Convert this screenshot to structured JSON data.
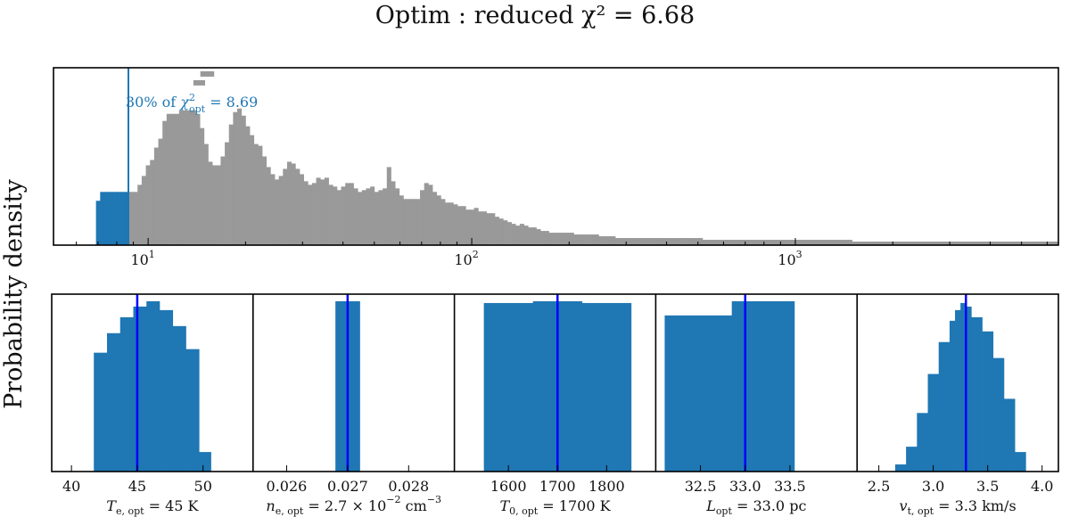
{
  "title": "Optim : reduced χ² =  6.68",
  "ylabel": "Probability density",
  "colors": {
    "accepted": "#1f77b4",
    "rejected": "#999999",
    "optimum_line": "#0000ff",
    "threshold_line": "#1f77b4"
  },
  "chart_data": [
    {
      "type": "histogram",
      "name": "reduced chi-square distribution",
      "xscale": "log",
      "xlim": [
        5.1,
        6500
      ],
      "ylim": [
        0,
        1.0
      ],
      "xticks": [
        {
          "value": 10,
          "base": "10",
          "exp": "1"
        },
        {
          "value": 100,
          "base": "10",
          "exp": "2"
        },
        {
          "value": 1000,
          "base": "10",
          "exp": "3"
        }
      ],
      "threshold": 8.69,
      "annotation": {
        "prefix": "30% of ",
        "symbol": "χ",
        "sup": "2",
        "sub": "opt",
        "value": " = 8.69"
      },
      "bins": {
        "start": 6.9,
        "ratio": 1.03,
        "heights": [
          0.25,
          0.3,
          0.3,
          0.3,
          0.3,
          0.3,
          0.3,
          0.3,
          0.3,
          0.3,
          0.34,
          0.39,
          0.45,
          0.48,
          0.55,
          0.6,
          0.7,
          0.74,
          0.74,
          0.74,
          0.76,
          0.76,
          0.76,
          0.76,
          0.74,
          0.66,
          0.57,
          0.47,
          0.45,
          0.45,
          0.5,
          0.58,
          0.68,
          0.75,
          0.77,
          0.73,
          0.67,
          0.62,
          0.57,
          0.56,
          0.5,
          0.44,
          0.4,
          0.37,
          0.39,
          0.43,
          0.47,
          0.46,
          0.43,
          0.4,
          0.36,
          0.34,
          0.35,
          0.38,
          0.37,
          0.38,
          0.34,
          0.33,
          0.31,
          0.33,
          0.35,
          0.35,
          0.32,
          0.3,
          0.31,
          0.32,
          0.33,
          0.3,
          0.31,
          0.32,
          0.44,
          0.36,
          0.32,
          0.28,
          0.26,
          0.26,
          0.26,
          0.26,
          0.31,
          0.35,
          0.34,
          0.3,
          0.28,
          0.26,
          0.24,
          0.24,
          0.23,
          0.22,
          0.22,
          0.2,
          0.2,
          0.21,
          0.19,
          0.19,
          0.18,
          0.18,
          0.16,
          0.15,
          0.14,
          0.13,
          0.12,
          0.11,
          0.12,
          0.11,
          0.1,
          0.1,
          0.09,
          0.08,
          0.08,
          0.07,
          0.07,
          0.07,
          0.07,
          0.07,
          0.07,
          0.06,
          0.06,
          0.06,
          0.06,
          0.06,
          0.06,
          0.05,
          0.05,
          0.05,
          0.05,
          0.04,
          0.04,
          0.04,
          0.04,
          0.04,
          0.04,
          0.04,
          0.04,
          0.04,
          0.04,
          0.04,
          0.04,
          0.04,
          0.04,
          0.04,
          0.04,
          0.04,
          0.04,
          0.04,
          0.04,
          0.04,
          0.03,
          0.03,
          0.03,
          0.03,
          0.03,
          0.03,
          0.03,
          0.03,
          0.03,
          0.03,
          0.03,
          0.03,
          0.03,
          0.03,
          0.03,
          0.03,
          0.03,
          0.03,
          0.03,
          0.03,
          0.03,
          0.03,
          0.03,
          0.03,
          0.03,
          0.03,
          0.03,
          0.03,
          0.03,
          0.03,
          0.03,
          0.03,
          0.03,
          0.03,
          0.03,
          0.03,
          0.02,
          0.02,
          0.02,
          0.02,
          0.02,
          0.02,
          0.02,
          0.02,
          0.02,
          0.02,
          0.02,
          0.02,
          0.02,
          0.02,
          0.02,
          0.02,
          0.02,
          0.02,
          0.02,
          0.02,
          0.02,
          0.02,
          0.02,
          0.02,
          0.02,
          0.02,
          0.02,
          0.02,
          0.02,
          0.02,
          0.02,
          0.02,
          0.02,
          0.02,
          0.02,
          0.02,
          0.02,
          0.02,
          0.02,
          0.02,
          0.02,
          0.02,
          0.02,
          0.02,
          0.02,
          0.02,
          0.02,
          0.02,
          0.02,
          0.02,
          0.02,
          0.02,
          0.02
        ]
      },
      "outliers": [
        {
          "x0": 14.5,
          "x1": 16.0,
          "height": 0.98
        },
        {
          "x0": 13.8,
          "x1": 15.0,
          "height": 0.93
        }
      ]
    },
    {
      "type": "histogram",
      "name": "T_e posterior",
      "xlim": [
        38.5,
        53.8
      ],
      "ylim": [
        0,
        1.0
      ],
      "xticks": [
        40,
        45,
        50
      ],
      "tick_labels": [
        "40",
        "45",
        "50"
      ],
      "optimum": 45,
      "label_parts": [
        {
          "t": "T",
          "style": "italic"
        },
        {
          "t": "e, opt",
          "style": "sub"
        },
        {
          "t": " = 45 K",
          "style": "normal"
        }
      ],
      "edges": [
        41.7,
        42.7,
        43.7,
        44.7,
        45.7,
        46.7,
        47.7,
        48.7,
        49.7,
        50.6
      ],
      "heights": [
        0.67,
        0.78,
        0.87,
        0.93,
        0.96,
        0.91,
        0.82,
        0.69,
        0.11
      ]
    },
    {
      "type": "histogram",
      "name": "n_e posterior",
      "xlim": [
        0.02545,
        0.02875
      ],
      "ylim": [
        0,
        1.0
      ],
      "xticks": [
        0.026,
        0.027,
        0.028
      ],
      "tick_labels": [
        "0.026",
        "0.027",
        "0.028"
      ],
      "optimum": 0.027,
      "label_parts": [
        {
          "t": "n",
          "style": "italic"
        },
        {
          "t": "e, opt",
          "style": "sub"
        },
        {
          "t": " = 2.7 × 10",
          "style": "normal"
        },
        {
          "t": "−2",
          "style": "sup"
        },
        {
          "t": " cm",
          "style": "normal"
        },
        {
          "t": "−3",
          "style": "sup"
        }
      ],
      "edges": [
        0.0268,
        0.0272
      ],
      "heights": [
        0.96
      ]
    },
    {
      "type": "histogram",
      "name": "T_0 posterior",
      "xlim": [
        1490,
        1900
      ],
      "ylim": [
        0,
        1.0
      ],
      "xticks": [
        1600,
        1700,
        1800
      ],
      "tick_labels": [
        "1600",
        "1700",
        "1800"
      ],
      "optimum": 1700,
      "label_parts": [
        {
          "t": "T",
          "style": "italic"
        },
        {
          "t": "0, opt",
          "style": "sub"
        },
        {
          "t": " = 1700 K",
          "style": "normal"
        }
      ],
      "edges": [
        1550,
        1650,
        1750,
        1850
      ],
      "heights": [
        0.95,
        0.96,
        0.95
      ]
    },
    {
      "type": "histogram",
      "name": "L posterior",
      "xlim": [
        32.0,
        34.25
      ],
      "ylim": [
        0,
        1.0
      ],
      "xticks": [
        32.5,
        33.0,
        33.5
      ],
      "tick_labels": [
        "32.5",
        "33.0",
        "33.5"
      ],
      "optimum": 33.0,
      "label_parts": [
        {
          "t": "L",
          "style": "italic"
        },
        {
          "t": "opt",
          "style": "sub"
        },
        {
          "t": " = 33.0 pc",
          "style": "normal"
        }
      ],
      "edges": [
        32.1,
        32.85,
        33.55
      ],
      "heights": [
        0.88,
        0.96
      ]
    },
    {
      "type": "histogram",
      "name": "v_t posterior",
      "xlim": [
        2.3,
        4.15
      ],
      "ylim": [
        0,
        1.0
      ],
      "xticks": [
        2.5,
        3.0,
        3.5,
        4.0
      ],
      "tick_labels": [
        "2.5",
        "3.0",
        "3.5",
        "4.0"
      ],
      "optimum": 3.3,
      "label_parts": [
        {
          "t": "v",
          "style": "italic"
        },
        {
          "t": "t, opt",
          "style": "sub"
        },
        {
          "t": " = 3.3 km/s",
          "style": "normal"
        }
      ],
      "edges": [
        2.65,
        2.75,
        2.85,
        2.95,
        3.05,
        3.15,
        3.2,
        3.25,
        3.3,
        3.35,
        3.45,
        3.55,
        3.65,
        3.75,
        3.85
      ],
      "heights": [
        0.04,
        0.14,
        0.33,
        0.55,
        0.73,
        0.85,
        0.91,
        0.95,
        0.93,
        0.87,
        0.79,
        0.64,
        0.41,
        0.11
      ]
    }
  ]
}
